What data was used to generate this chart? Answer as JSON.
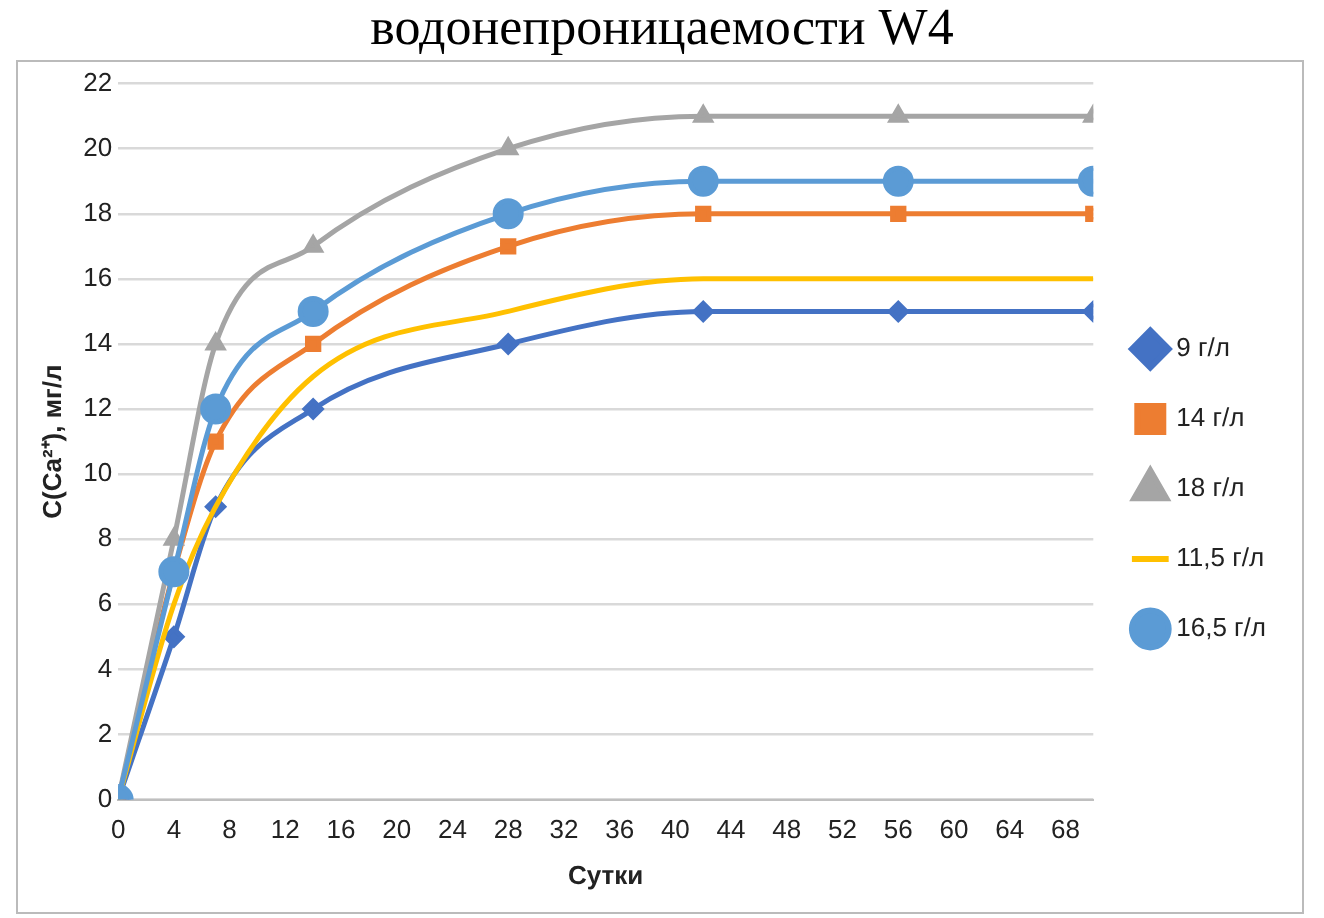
{
  "chart_data": {
    "type": "line",
    "title": "водонепроницаемости W4",
    "xlabel": "Сутки",
    "ylabel": "C(Ca²⁺), мг/л",
    "x": [
      0,
      4,
      7,
      14,
      28,
      42,
      56,
      70
    ],
    "series": [
      {
        "name": "9 г/л",
        "color": "#4472c4",
        "marker": "diamond",
        "values": [
          0,
          5,
          9,
          12,
          14,
          15,
          15,
          15
        ]
      },
      {
        "name": "14 г/л",
        "color": "#ed7d31",
        "marker": "square",
        "values": [
          0,
          7,
          11,
          14,
          17,
          18,
          18,
          18
        ]
      },
      {
        "name": "18 г/л",
        "color": "#a5a5a5",
        "marker": "triangle",
        "values": [
          0,
          8,
          14,
          17,
          20,
          21,
          21,
          21
        ]
      },
      {
        "name": "11,5 г/л",
        "color": "#ffc000",
        "marker": "none",
        "values": [
          0,
          6,
          9,
          13,
          15,
          16,
          16,
          16
        ]
      },
      {
        "name": "16,5 г/л",
        "color": "#5b9bd5",
        "marker": "circle",
        "values": [
          0,
          7,
          12,
          15,
          18,
          19,
          19,
          19
        ]
      }
    ],
    "xlim": [
      0,
      70
    ],
    "xticks": [
      0,
      4,
      8,
      12,
      16,
      20,
      24,
      28,
      32,
      36,
      40,
      44,
      48,
      52,
      56,
      60,
      64,
      68
    ],
    "ylim": [
      0,
      22
    ],
    "yticks": [
      0,
      2,
      4,
      6,
      8,
      10,
      12,
      14,
      16,
      18,
      20,
      22
    ],
    "grid": "y",
    "legend": "right"
  }
}
